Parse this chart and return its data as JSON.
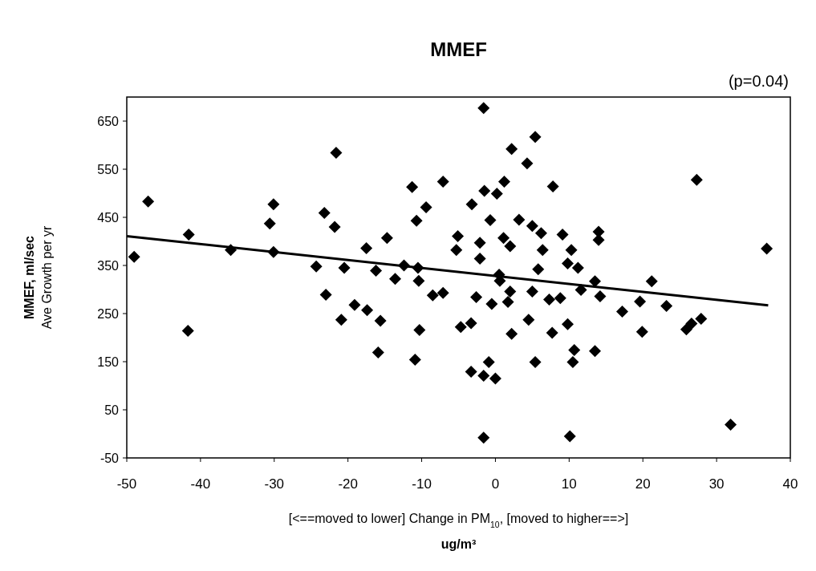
{
  "chart_data": {
    "type": "scatter",
    "title": "MMEF",
    "xlabel": "[<==moved to lower]   Change in PM$_{10}$,   [moved to higher==>]\nug/m³",
    "ylabel": "MMEF, ml/sec\nAve Growth per yr",
    "annotations": [
      "(p=0.04)"
    ],
    "xlim": [
      -50,
      40
    ],
    "xticks": [
      -50,
      -40,
      -30,
      -20,
      -10,
      0,
      10,
      20,
      30,
      40
    ],
    "ylim": [
      -50,
      700
    ],
    "yticks": [
      -50,
      50,
      150,
      250,
      350,
      450,
      550,
      650
    ],
    "grid": false,
    "series": [
      {
        "color": "#000000",
        "marker": "diamond",
        "x": [
          -49,
          -47.1,
          -41.6,
          -41.7,
          -35.9,
          -30.1,
          -30.6,
          -30.1,
          -21.6,
          -23.2,
          -21.8,
          -24.3,
          -20.5,
          -23,
          -20.9,
          -19.1,
          -1.6,
          5.4,
          2.2,
          4.3,
          -7.1,
          -11.3,
          7.8,
          1.2,
          0.2,
          -1.5,
          -9.4,
          -3.2,
          -10.7,
          -0.7,
          3.2,
          -14.7,
          -5.1,
          -17.5,
          -5.3,
          -2.1,
          1.1,
          2,
          5,
          6.2,
          6.4,
          9.1,
          10.3,
          9.8,
          11.2,
          -2.1,
          -16.2,
          -12.4,
          -10.5,
          -13.6,
          -10.4,
          0.5,
          0.6,
          5.8,
          -8.5,
          -7.1,
          -2.6,
          -0.5,
          2,
          1.7,
          5,
          7.3,
          8.8,
          11.6,
          -17.4,
          -15.6,
          -10.3,
          -4.7,
          -3.3,
          2.2,
          4.5,
          7.7,
          9.8,
          -15.9,
          -10.9,
          -3.3,
          -0.9,
          -1.6,
          0,
          5.4,
          10.7,
          10.5,
          -1.6,
          10.1,
          27.3,
          36.8,
          31.9,
          14,
          14,
          13.5,
          14.2,
          21.2,
          19.6,
          23.2,
          17.2,
          19.9,
          25.9,
          27.9,
          26.6,
          13.5
        ],
        "values": [
          368,
          483,
          414,
          214,
          382,
          477,
          437,
          378,
          584,
          459,
          430,
          348,
          345,
          289,
          237,
          268,
          677,
          617,
          592,
          562,
          524,
          513,
          514,
          524,
          499,
          505,
          471,
          477,
          443,
          444,
          445,
          407,
          411,
          386,
          382,
          397,
          407,
          390,
          432,
          417,
          382,
          414,
          382,
          354,
          345,
          364,
          339,
          350,
          345,
          322,
          318,
          331,
          318,
          342,
          288,
          293,
          284,
          270,
          296,
          274,
          296,
          279,
          282,
          299,
          257,
          235,
          216,
          222,
          230,
          208,
          237,
          210,
          228,
          169,
          154,
          129,
          149,
          121,
          115,
          149,
          174,
          149,
          -8,
          -5,
          528,
          385,
          19,
          420,
          403,
          317,
          286,
          317,
          275,
          266,
          254,
          212,
          217,
          239,
          229,
          172
        ]
      },
      {
        "type": "line",
        "color": "#000000",
        "marker": "none",
        "x": [
          -50,
          37
        ],
        "values": [
          411,
          267
        ]
      }
    ]
  }
}
